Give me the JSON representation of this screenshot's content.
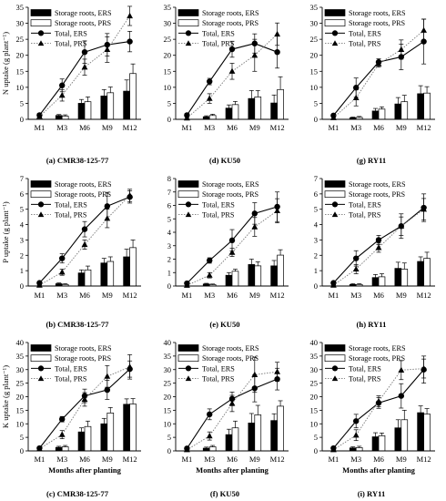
{
  "x_categories": [
    "M1",
    "M3",
    "M6",
    "M9",
    "M12"
  ],
  "x_axis_label": "Months after planting",
  "legend_labels": [
    "Storage roots, ERS",
    "Storage roots, PRS",
    "Total, ERS",
    "Total, PRS"
  ],
  "chart_data": [
    {
      "type": "bar+line",
      "panel": "a",
      "caption": "(a) CMR38-125-77",
      "ylabel": "N uptake (g plant⁻¹)",
      "ylim": [
        0,
        35
      ],
      "yticks": [
        0,
        5,
        10,
        15,
        20,
        25,
        30,
        35
      ],
      "series": [
        {
          "name": "Storage roots, ERS",
          "kind": "bar",
          "values": [
            0,
            1.2,
            5.0,
            7.3,
            8.8
          ],
          "errors": [
            0,
            0.3,
            1.2,
            2.0,
            3.5
          ]
        },
        {
          "name": "Storage roots, PRS",
          "kind": "bar",
          "values": [
            0,
            1.0,
            5.5,
            8.3,
            14.3
          ],
          "errors": [
            0,
            0.4,
            1.5,
            1.8,
            3.0
          ]
        },
        {
          "name": "Total, ERS",
          "kind": "line",
          "values": [
            1.3,
            10.6,
            21.0,
            23.3,
            24.3
          ],
          "errors": [
            0.4,
            2.0,
            3.5,
            3.5,
            3.2
          ]
        },
        {
          "name": "Total, PRS",
          "kind": "line",
          "values": [
            0.9,
            7.5,
            16.3,
            21.8,
            32.3
          ],
          "errors": [
            0.3,
            1.8,
            2.5,
            4.0,
            3.0
          ]
        }
      ]
    },
    {
      "type": "bar+line",
      "panel": "d",
      "caption": "(d) KU50",
      "ylabel": "",
      "ylim": [
        0,
        35
      ],
      "yticks": [
        0,
        5,
        10,
        15,
        20,
        25,
        30,
        35
      ],
      "series": [
        {
          "name": "Storage roots, ERS",
          "kind": "bar",
          "values": [
            0,
            0.8,
            3.5,
            6.5,
            5.1
          ],
          "errors": [
            0,
            0.3,
            1.0,
            2.5,
            2.5
          ]
        },
        {
          "name": "Storage roots, PRS",
          "kind": "bar",
          "values": [
            0,
            1.2,
            4.6,
            7.0,
            9.3
          ],
          "errors": [
            0,
            0.4,
            1.0,
            2.0,
            4.0
          ]
        },
        {
          "name": "Total, ERS",
          "kind": "line",
          "values": [
            1.3,
            11.8,
            21.9,
            23.7,
            21.0
          ],
          "errors": [
            0.3,
            1.0,
            2.5,
            3.0,
            5.0
          ]
        },
        {
          "name": "Total, PRS",
          "kind": "line",
          "values": [
            0.4,
            6.5,
            15.0,
            20.0,
            26.6
          ],
          "errors": [
            0.2,
            1.5,
            2.5,
            5.0,
            3.5
          ]
        }
      ]
    },
    {
      "type": "bar+line",
      "panel": "g",
      "caption": "(g) RY11",
      "ylabel": "",
      "ylim": [
        0,
        35
      ],
      "yticks": [
        0,
        5,
        10,
        15,
        20,
        25,
        30,
        35
      ],
      "series": [
        {
          "name": "Storage roots, ERS",
          "kind": "bar",
          "values": [
            0,
            0.5,
            2.6,
            4.8,
            8.0
          ],
          "errors": [
            0,
            0.2,
            0.8,
            2.0,
            2.5
          ]
        },
        {
          "name": "Storage roots, PRS",
          "kind": "bar",
          "values": [
            0,
            0.6,
            3.2,
            5.5,
            8.2
          ],
          "errors": [
            0,
            0.3,
            0.7,
            2.0,
            2.0
          ]
        },
        {
          "name": "Total, ERS",
          "kind": "line",
          "values": [
            1.2,
            9.9,
            17.9,
            19.5,
            24.3
          ],
          "errors": [
            0.3,
            3.0,
            1.0,
            4.0,
            7.0
          ]
        },
        {
          "name": "Total, PRS",
          "kind": "line",
          "values": [
            0.5,
            6.7,
            17.3,
            21.8,
            27.8
          ],
          "errors": [
            0.2,
            2.5,
            1.0,
            3.0,
            3.5
          ]
        }
      ]
    },
    {
      "type": "bar+line",
      "panel": "b",
      "caption": "(b) CMR38-125-77",
      "ylabel": "P uptake (g plant⁻¹)",
      "ylim": [
        0,
        7
      ],
      "yticks": [
        0,
        1,
        2,
        3,
        4,
        5,
        6,
        7
      ],
      "series": [
        {
          "name": "Storage roots, ERS",
          "kind": "bar",
          "values": [
            0,
            0.15,
            0.85,
            1.5,
            1.9
          ],
          "errors": [
            0,
            0.05,
            0.2,
            0.3,
            0.5
          ]
        },
        {
          "name": "Storage roots, PRS",
          "kind": "bar",
          "values": [
            0,
            0.1,
            1.05,
            1.6,
            2.5
          ],
          "errors": [
            0,
            0.05,
            0.25,
            0.3,
            0.5
          ]
        },
        {
          "name": "Total, ERS",
          "kind": "line",
          "values": [
            0.2,
            1.8,
            3.7,
            5.2,
            5.8
          ],
          "errors": [
            0.05,
            0.3,
            0.5,
            0.9,
            0.4
          ]
        },
        {
          "name": "Total, PRS",
          "kind": "line",
          "values": [
            0.05,
            0.9,
            2.7,
            4.4,
            5.9
          ],
          "errors": [
            0.02,
            0.2,
            0.3,
            0.6,
            0.4
          ]
        }
      ]
    },
    {
      "type": "bar+line",
      "panel": "e",
      "caption": "(e) KU50",
      "ylabel": "",
      "ylim": [
        0,
        8
      ],
      "yticks": [
        0,
        1,
        2,
        3,
        4,
        5,
        6,
        7,
        8
      ],
      "series": [
        {
          "name": "Storage roots, ERS",
          "kind": "bar",
          "values": [
            0,
            0.15,
            0.8,
            1.6,
            1.5
          ],
          "errors": [
            0,
            0.05,
            0.2,
            0.4,
            0.4
          ]
        },
        {
          "name": "Storage roots, PRS",
          "kind": "bar",
          "values": [
            0,
            0.1,
            1.1,
            1.5,
            2.3
          ],
          "errors": [
            0,
            0.05,
            0.15,
            0.3,
            0.4
          ]
        },
        {
          "name": "Total, ERS",
          "kind": "line",
          "values": [
            0.2,
            1.9,
            3.4,
            5.4,
            5.9
          ],
          "errors": [
            0.05,
            0.2,
            0.8,
            0.8,
            1.1
          ]
        },
        {
          "name": "Total, PRS",
          "kind": "line",
          "values": [
            0.05,
            0.8,
            2.5,
            4.4,
            5.6
          ],
          "errors": [
            0.02,
            0.2,
            0.3,
            0.7,
            0.9
          ]
        }
      ]
    },
    {
      "type": "bar+line",
      "panel": "h",
      "caption": "(h) RY11",
      "ylabel": "",
      "ylim": [
        0,
        7
      ],
      "yticks": [
        0,
        1,
        2,
        3,
        4,
        5,
        6,
        7
      ],
      "series": [
        {
          "name": "Storage roots, ERS",
          "kind": "bar",
          "values": [
            0,
            0.1,
            0.55,
            1.15,
            1.6
          ],
          "errors": [
            0,
            0.05,
            0.2,
            0.4,
            0.3
          ]
        },
        {
          "name": "Storage roots, PRS",
          "kind": "bar",
          "values": [
            0,
            0.1,
            0.6,
            1.1,
            1.8
          ],
          "errors": [
            0,
            0.05,
            0.2,
            0.4,
            0.4
          ]
        },
        {
          "name": "Total, ERS",
          "kind": "line",
          "values": [
            0.2,
            1.8,
            3.0,
            3.9,
            5.1
          ],
          "errors": [
            0.05,
            0.5,
            0.3,
            0.8,
            0.9
          ]
        },
        {
          "name": "Total, PRS",
          "kind": "line",
          "values": [
            0.05,
            1.1,
            2.5,
            3.9,
            5.0
          ],
          "errors": [
            0.02,
            0.3,
            0.3,
            0.6,
            0.7
          ]
        }
      ]
    },
    {
      "type": "bar+line",
      "panel": "c",
      "caption": "(c) CMR38-125-77",
      "ylabel": "K uptake (g plant⁻¹)",
      "ylim": [
        0,
        40
      ],
      "yticks": [
        0,
        5,
        10,
        15,
        20,
        25,
        30,
        35,
        40
      ],
      "series": [
        {
          "name": "Storage roots, ERS",
          "kind": "bar",
          "values": [
            0,
            1.3,
            7.0,
            10.0,
            17.2
          ],
          "errors": [
            0,
            0.4,
            1.5,
            2.0,
            2.0
          ]
        },
        {
          "name": "Storage roots, PRS",
          "kind": "bar",
          "values": [
            0,
            1.5,
            9.0,
            14.0,
            17.3
          ],
          "errors": [
            0,
            0.5,
            2.0,
            2.0,
            2.0
          ]
        },
        {
          "name": "Total, ERS",
          "kind": "line",
          "values": [
            1.0,
            11.7,
            20.3,
            22.5,
            30.2
          ],
          "errors": [
            0.3,
            1.0,
            2.5,
            3.5,
            3.0
          ]
        },
        {
          "name": "Total, PRS",
          "kind": "line",
          "values": [
            0.8,
            6.0,
            19.0,
            27.5,
            31.0
          ],
          "errors": [
            0.2,
            1.5,
            2.5,
            4.0,
            4.5
          ]
        }
      ]
    },
    {
      "type": "bar+line",
      "panel": "f",
      "caption": "(f) KU50",
      "ylabel": "",
      "ylim": [
        0,
        40
      ],
      "yticks": [
        0,
        5,
        10,
        15,
        20,
        25,
        30,
        35,
        40
      ],
      "series": [
        {
          "name": "Storage roots, ERS",
          "kind": "bar",
          "values": [
            0,
            1.0,
            6.0,
            10.3,
            11.2
          ],
          "errors": [
            0,
            0.4,
            2.0,
            3.5,
            2.5
          ]
        },
        {
          "name": "Storage roots, PRS",
          "kind": "bar",
          "values": [
            0,
            1.5,
            8.5,
            13.3,
            16.5
          ],
          "errors": [
            0,
            0.5,
            2.5,
            3.5,
            2.0
          ]
        },
        {
          "name": "Total, ERS",
          "kind": "line",
          "values": [
            0.9,
            13.5,
            19.2,
            23.1,
            26.5
          ],
          "errors": [
            0.3,
            2.0,
            2.5,
            5.0,
            4.0
          ]
        },
        {
          "name": "Total, PRS",
          "kind": "line",
          "values": [
            0.4,
            5.5,
            17.5,
            28.1,
            29.2
          ],
          "errors": [
            0.2,
            1.5,
            3.0,
            6.5,
            3.5
          ]
        }
      ]
    },
    {
      "type": "bar+line",
      "panel": "i",
      "caption": "(i) RY11",
      "ylabel": "",
      "ylim": [
        0,
        40
      ],
      "yticks": [
        0,
        5,
        10,
        15,
        20,
        25,
        30,
        35,
        40
      ],
      "series": [
        {
          "name": "Storage roots, ERS",
          "kind": "bar",
          "values": [
            0,
            1.1,
            5.2,
            8.5,
            14.1
          ],
          "errors": [
            0,
            0.4,
            1.5,
            3.0,
            2.5
          ]
        },
        {
          "name": "Storage roots, PRS",
          "kind": "bar",
          "values": [
            0,
            1.2,
            5.6,
            11.5,
            13.6
          ],
          "errors": [
            0,
            0.5,
            1.0,
            3.5,
            2.0
          ]
        },
        {
          "name": "Total, ERS",
          "kind": "line",
          "values": [
            1.0,
            11.0,
            17.7,
            20.3,
            30.0
          ],
          "errors": [
            0.3,
            2.5,
            2.0,
            4.5,
            5.0
          ]
        },
        {
          "name": "Total, PRS",
          "kind": "line",
          "values": [
            0.4,
            5.8,
            18.3,
            29.8,
            30.4
          ],
          "errors": [
            0.2,
            2.0,
            2.0,
            3.5,
            3.5
          ]
        }
      ]
    }
  ]
}
